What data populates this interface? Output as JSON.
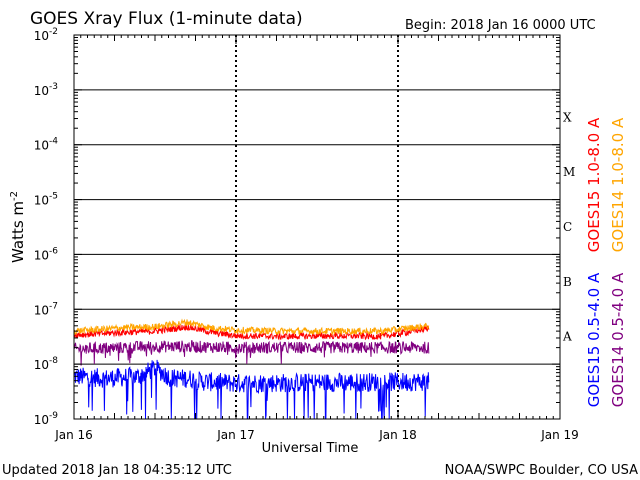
{
  "chart_data": {
    "type": "line",
    "title": "GOES Xray Flux (1-minute data)",
    "begin_label": "Begin:  2018 Jan 16 0000 UTC",
    "xlabel": "Universal Time",
    "ylabel_base": "Watts m",
    "ylabel_exp": "-2",
    "x_ticks": [
      "Jan 16",
      "Jan 17",
      "Jan 18",
      "Jan 19"
    ],
    "y_scale": "log",
    "ylim": [
      1e-09,
      0.01
    ],
    "y_ticks": [
      {
        "base": "10",
        "exp": "-2"
      },
      {
        "base": "10",
        "exp": "-3"
      },
      {
        "base": "10",
        "exp": "-4"
      },
      {
        "base": "10",
        "exp": "-5"
      },
      {
        "base": "10",
        "exp": "-6"
      },
      {
        "base": "10",
        "exp": "-7"
      },
      {
        "base": "10",
        "exp": "-8"
      },
      {
        "base": "10",
        "exp": "-9"
      }
    ],
    "flare_classes": [
      "X",
      "M",
      "C",
      "B",
      "A"
    ],
    "grid": "horizontal lines at each decade",
    "day_range": [
      0,
      3
    ],
    "data_end_day": 2.19,
    "series": [
      {
        "name": "GOES15 1.0-8.0 A",
        "color": "#ff0000",
        "typical": 3.5e-08,
        "points": [
          [
            0,
            3.4e-08
          ],
          [
            0.3,
            3.8e-08
          ],
          [
            0.5,
            4e-08
          ],
          [
            0.7,
            4.8e-08
          ],
          [
            0.85,
            3.8e-08
          ],
          [
            1.0,
            3.3e-08
          ],
          [
            1.3,
            3.2e-08
          ],
          [
            1.6,
            3.3e-08
          ],
          [
            1.9,
            3.2e-08
          ],
          [
            2.19,
            4.5e-08
          ]
        ]
      },
      {
        "name": "GOES14 1.0-8.0 A",
        "color": "#ffa500",
        "typical": 4.2e-08,
        "points": [
          [
            0,
            4e-08
          ],
          [
            0.3,
            4.6e-08
          ],
          [
            0.5,
            4.8e-08
          ],
          [
            0.7,
            5.8e-08
          ],
          [
            0.85,
            4.6e-08
          ],
          [
            1.0,
            4.2e-08
          ],
          [
            1.3,
            4e-08
          ],
          [
            1.6,
            4e-08
          ],
          [
            1.9,
            4e-08
          ],
          [
            2.19,
            5e-08
          ]
        ]
      },
      {
        "name": "GOES15 0.5-4.0 A",
        "color": "#0000ff",
        "typical": 4.8e-09,
        "points": [
          [
            0,
            6e-09
          ],
          [
            0.2,
            5.5e-09
          ],
          [
            0.4,
            6e-09
          ],
          [
            0.5,
            8.5e-09
          ],
          [
            0.6,
            5.5e-09
          ],
          [
            0.7,
            5.5e-09
          ],
          [
            0.8,
            4.8e-09
          ],
          [
            1.0,
            4.5e-09
          ],
          [
            1.5,
            4.6e-09
          ],
          [
            2.19,
            4.8e-09
          ]
        ]
      },
      {
        "name": "GOES14 0.5-4.0 A",
        "color": "#800080",
        "typical": 2e-08,
        "points": [
          [
            0,
            1.9e-08
          ],
          [
            0.3,
            2e-08
          ],
          [
            0.5,
            2.1e-08
          ],
          [
            0.7,
            2.1e-08
          ],
          [
            1.0,
            2e-08
          ],
          [
            1.5,
            2e-08
          ],
          [
            2.19,
            2e-08
          ]
        ]
      }
    ]
  },
  "footer": {
    "updated": "Updated 2018 Jan 18 04:35:12 UTC",
    "source": "NOAA/SWPC Boulder, CO USA"
  }
}
